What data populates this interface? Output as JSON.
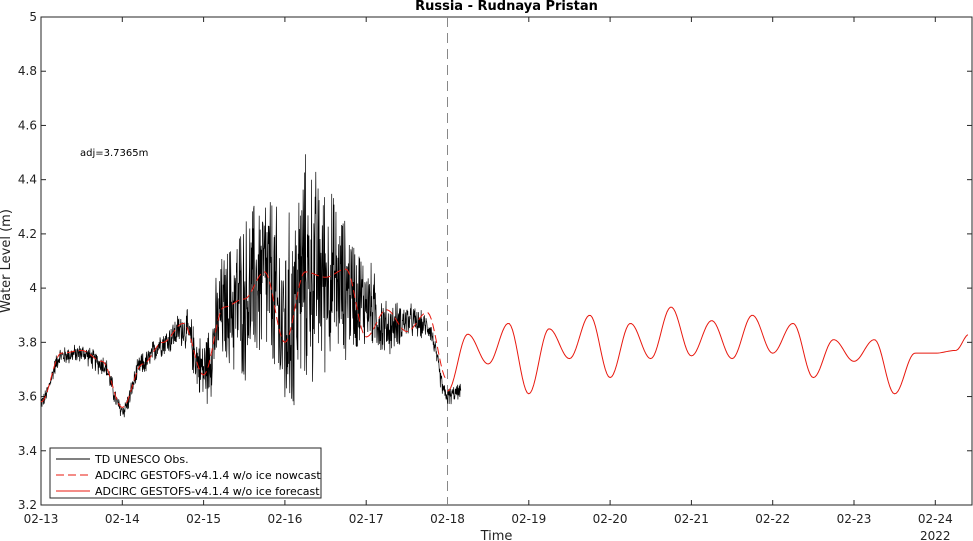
{
  "chart_data": {
    "type": "line",
    "title": "Russia - Rudnaya Pristan",
    "xlabel": "Time",
    "ylabel": "Water Level (m)",
    "year_label": "2022",
    "annotation": "adj=3.7365m",
    "ylim": [
      3.2,
      5.0
    ],
    "yticks": [
      3.2,
      3.4,
      3.6,
      3.8,
      4.0,
      4.2,
      4.4,
      4.6,
      4.8,
      5.0
    ],
    "ytick_labels": [
      "3.2",
      "3.4",
      "3.6",
      "3.8",
      "4",
      "4.2",
      "4.4",
      "4.6",
      "4.8",
      "5"
    ],
    "xlim": [
      "2022-02-13",
      "2022-02-24T10:00"
    ],
    "xticks": [
      "02-13",
      "02-14",
      "02-15",
      "02-16",
      "02-17",
      "02-18",
      "02-19",
      "02-20",
      "02-21",
      "02-22",
      "02-23",
      "02-24"
    ],
    "nowcast_forecast_split": "02-18",
    "legend_position": "bottom-left",
    "series": [
      {
        "name": "TD UNESCO Obs.",
        "color": "#000000",
        "style": "solid",
        "x": [
          "02-13 00:00",
          "02-13 06:00",
          "02-13 12:00",
          "02-13 18:00",
          "02-14 00:00",
          "02-14 06:00",
          "02-14 12:00",
          "02-14 18:00",
          "02-15 00:00",
          "02-15 06:00",
          "02-15 12:00",
          "02-15 18:00",
          "02-16 00:00",
          "02-16 06:00",
          "02-16 12:00",
          "02-16 18:00",
          "02-17 00:00",
          "02-17 06:00",
          "02-17 12:00",
          "02-17 18:00",
          "02-18 00:00",
          "02-18 04:00"
        ],
        "y": [
          3.58,
          3.75,
          3.76,
          3.72,
          3.55,
          3.72,
          3.8,
          3.85,
          3.7,
          3.92,
          3.96,
          4.05,
          3.85,
          4.05,
          4.05,
          4.0,
          3.95,
          3.85,
          3.88,
          3.86,
          3.6,
          3.62
        ],
        "spread": [
          0.03,
          0.04,
          0.04,
          0.05,
          0.04,
          0.05,
          0.06,
          0.08,
          0.15,
          0.25,
          0.35,
          0.4,
          0.45,
          0.5,
          0.4,
          0.3,
          0.2,
          0.12,
          0.08,
          0.05,
          0.04,
          0.03
        ]
      },
      {
        "name": "ADCIRC GESTOFS-v4.1.4 w/o ice nowcast",
        "color": "#e8190f",
        "style": "dashed",
        "x": [
          "02-13 00:00",
          "02-13 06:00",
          "02-13 12:00",
          "02-13 18:00",
          "02-14 00:00",
          "02-14 06:00",
          "02-14 12:00",
          "02-14 18:00",
          "02-15 00:00",
          "02-15 06:00",
          "02-15 12:00",
          "02-15 18:00",
          "02-16 00:00",
          "02-16 06:00",
          "02-16 12:00",
          "02-16 18:00",
          "02-17 00:00",
          "02-17 06:00",
          "02-17 12:00",
          "02-17 18:00",
          "02-18 00:00"
        ],
        "y": [
          3.58,
          3.76,
          3.77,
          3.73,
          3.56,
          3.72,
          3.8,
          3.87,
          3.68,
          3.93,
          3.96,
          4.06,
          3.8,
          4.06,
          4.04,
          4.07,
          3.82,
          3.92,
          3.84,
          3.91,
          3.66
        ]
      },
      {
        "name": "ADCIRC GESTOFS-v4.1.4 w/o ice forecast",
        "color": "#e8190f",
        "style": "solid",
        "x": [
          "02-18 00:00",
          "02-18 06:00",
          "02-18 12:00",
          "02-18 18:00",
          "02-19 00:00",
          "02-19 06:00",
          "02-19 12:00",
          "02-19 18:00",
          "02-20 00:00",
          "02-20 06:00",
          "02-20 12:00",
          "02-20 18:00",
          "02-21 00:00",
          "02-21 06:00",
          "02-21 12:00",
          "02-21 18:00",
          "02-22 00:00",
          "02-22 06:00",
          "02-22 12:00",
          "02-22 18:00",
          "02-23 00:00",
          "02-23 06:00",
          "02-23 12:00",
          "02-23 18:00",
          "02-24 00:00",
          "02-24 06:00",
          "02-24 10:00"
        ],
        "y": [
          3.62,
          3.83,
          3.72,
          3.87,
          3.61,
          3.85,
          3.74,
          3.9,
          3.67,
          3.87,
          3.74,
          3.93,
          3.75,
          3.88,
          3.74,
          3.9,
          3.76,
          3.87,
          3.67,
          3.81,
          3.73,
          3.81,
          3.61,
          3.76,
          3.76,
          3.77,
          3.83
        ]
      }
    ]
  }
}
